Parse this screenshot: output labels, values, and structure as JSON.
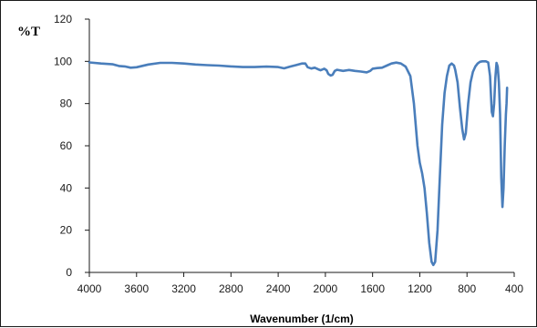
{
  "chart_data": {
    "type": "line",
    "ylabel": "%T",
    "xlabel": "Wavenumber (1/cm)",
    "xlim": [
      4000,
      400
    ],
    "x_reversed": true,
    "ylim": [
      0,
      120
    ],
    "x_ticks": [
      4000,
      3600,
      3200,
      2800,
      2400,
      2000,
      1600,
      1200,
      800,
      400
    ],
    "y_ticks": [
      0,
      20,
      40,
      60,
      80,
      100,
      120
    ],
    "grid": false,
    "legend": "none",
    "series": [
      {
        "color": "#4a7ebb",
        "points": [
          [
            4000,
            99.5
          ],
          [
            3900,
            99
          ],
          [
            3800,
            98.6
          ],
          [
            3750,
            97.8
          ],
          [
            3700,
            97.6
          ],
          [
            3650,
            97
          ],
          [
            3600,
            97.2
          ],
          [
            3500,
            98.5
          ],
          [
            3400,
            99.3
          ],
          [
            3300,
            99.3
          ],
          [
            3200,
            99
          ],
          [
            3100,
            98.5
          ],
          [
            3000,
            98.2
          ],
          [
            2900,
            98
          ],
          [
            2800,
            97.6
          ],
          [
            2700,
            97.3
          ],
          [
            2600,
            97.3
          ],
          [
            2500,
            97.5
          ],
          [
            2400,
            97.3
          ],
          [
            2350,
            96.7
          ],
          [
            2300,
            97.5
          ],
          [
            2250,
            98.2
          ],
          [
            2200,
            99
          ],
          [
            2170,
            99
          ],
          [
            2150,
            97.2
          ],
          [
            2120,
            96.6
          ],
          [
            2090,
            97
          ],
          [
            2060,
            96.2
          ],
          [
            2040,
            95.8
          ],
          [
            2010,
            96.5
          ],
          [
            1990,
            95.8
          ],
          [
            1975,
            94
          ],
          [
            1955,
            93.3
          ],
          [
            1940,
            93.6
          ],
          [
            1920,
            95.5
          ],
          [
            1900,
            96
          ],
          [
            1850,
            95.5
          ],
          [
            1800,
            95.9
          ],
          [
            1750,
            95.5
          ],
          [
            1700,
            95.2
          ],
          [
            1650,
            94.8
          ],
          [
            1620,
            95.5
          ],
          [
            1600,
            96.5
          ],
          [
            1560,
            96.8
          ],
          [
            1520,
            97
          ],
          [
            1480,
            98
          ],
          [
            1440,
            99
          ],
          [
            1400,
            99.4
          ],
          [
            1360,
            99
          ],
          [
            1320,
            97.5
          ],
          [
            1280,
            93
          ],
          [
            1250,
            80
          ],
          [
            1220,
            60
          ],
          [
            1200,
            52
          ],
          [
            1180,
            47
          ],
          [
            1160,
            40
          ],
          [
            1140,
            28
          ],
          [
            1120,
            14
          ],
          [
            1100,
            5
          ],
          [
            1085,
            3.5
          ],
          [
            1070,
            5
          ],
          [
            1050,
            20
          ],
          [
            1030,
            45
          ],
          [
            1010,
            70
          ],
          [
            990,
            85
          ],
          [
            970,
            93
          ],
          [
            950,
            98
          ],
          [
            930,
            99
          ],
          [
            910,
            98
          ],
          [
            900,
            96
          ],
          [
            880,
            90
          ],
          [
            860,
            78
          ],
          [
            840,
            68
          ],
          [
            825,
            63
          ],
          [
            810,
            66
          ],
          [
            790,
            80
          ],
          [
            770,
            90
          ],
          [
            750,
            95
          ],
          [
            730,
            97.5
          ],
          [
            710,
            99
          ],
          [
            690,
            99.8
          ],
          [
            670,
            100
          ],
          [
            640,
            100
          ],
          [
            620,
            99.5
          ],
          [
            605,
            93
          ],
          [
            590,
            76
          ],
          [
            580,
            74
          ],
          [
            570,
            80
          ],
          [
            560,
            92
          ],
          [
            550,
            99.3
          ],
          [
            540,
            97.5
          ],
          [
            530,
            90
          ],
          [
            520,
            75
          ],
          [
            510,
            45
          ],
          [
            500,
            31
          ],
          [
            490,
            40
          ],
          [
            480,
            60
          ],
          [
            470,
            75
          ],
          [
            465,
            80
          ],
          [
            460,
            87.5
          ]
        ]
      }
    ]
  }
}
